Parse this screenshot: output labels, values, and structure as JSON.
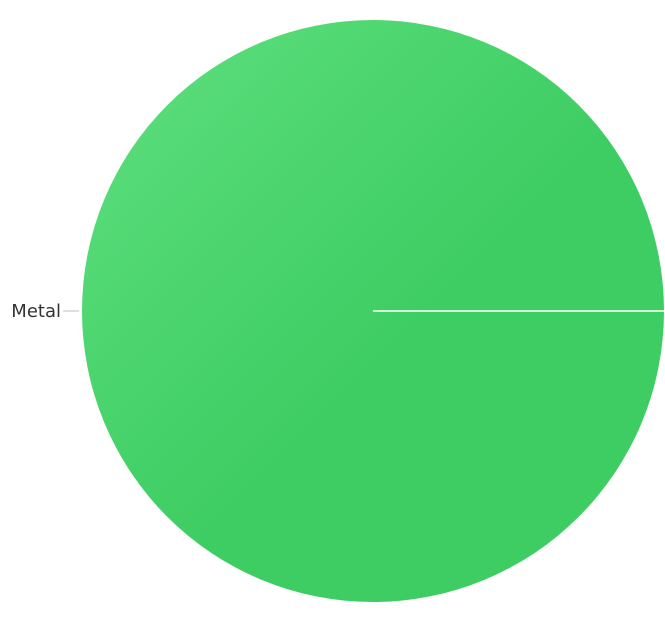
{
  "chart_data": {
    "type": "pie",
    "title": "",
    "slices": [
      {
        "label": "Metal",
        "value": 100,
        "color": "#3ecd63",
        "color_light": "#5fe07f"
      }
    ],
    "legend": "none",
    "label_placement": "outside-left"
  }
}
